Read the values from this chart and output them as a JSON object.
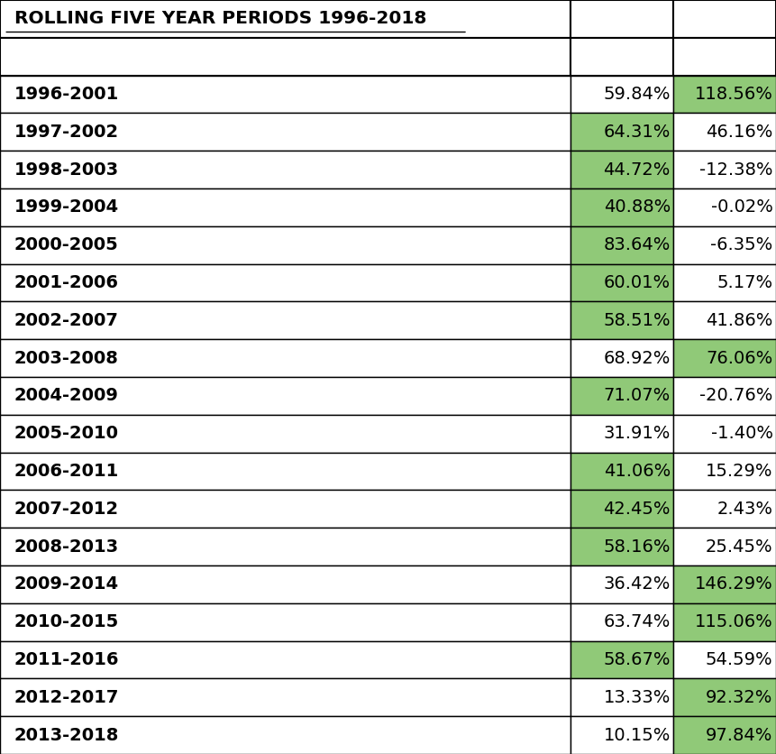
{
  "title": "ROLLING FIVE YEAR PERIODS 1996-2018",
  "rows": [
    {
      "period": "1996-2001",
      "col1": "59.84%",
      "col2": "118.56%",
      "col1_green": false,
      "col2_green": true
    },
    {
      "period": "1997-2002",
      "col1": "64.31%",
      "col2": "46.16%",
      "col1_green": true,
      "col2_green": false
    },
    {
      "period": "1998-2003",
      "col1": "44.72%",
      "col2": "-12.38%",
      "col1_green": true,
      "col2_green": false
    },
    {
      "period": "1999-2004",
      "col1": "40.88%",
      "col2": "-0.02%",
      "col1_green": true,
      "col2_green": false
    },
    {
      "period": "2000-2005",
      "col1": "83.64%",
      "col2": "-6.35%",
      "col1_green": true,
      "col2_green": false
    },
    {
      "period": "2001-2006",
      "col1": "60.01%",
      "col2": "5.17%",
      "col1_green": true,
      "col2_green": false
    },
    {
      "period": "2002-2007",
      "col1": "58.51%",
      "col2": "41.86%",
      "col1_green": true,
      "col2_green": false
    },
    {
      "period": "2003-2008",
      "col1": "68.92%",
      "col2": "76.06%",
      "col1_green": false,
      "col2_green": true
    },
    {
      "period": "2004-2009",
      "col1": "71.07%",
      "col2": "-20.76%",
      "col1_green": true,
      "col2_green": false
    },
    {
      "period": "2005-2010",
      "col1": "31.91%",
      "col2": "-1.40%",
      "col1_green": false,
      "col2_green": false
    },
    {
      "period": "2006-2011",
      "col1": "41.06%",
      "col2": "15.29%",
      "col1_green": true,
      "col2_green": false
    },
    {
      "period": "2007-2012",
      "col1": "42.45%",
      "col2": "2.43%",
      "col1_green": true,
      "col2_green": false
    },
    {
      "period": "2008-2013",
      "col1": "58.16%",
      "col2": "25.45%",
      "col1_green": true,
      "col2_green": false
    },
    {
      "period": "2009-2014",
      "col1": "36.42%",
      "col2": "146.29%",
      "col1_green": false,
      "col2_green": true
    },
    {
      "period": "2010-2015",
      "col1": "63.74%",
      "col2": "115.06%",
      "col1_green": false,
      "col2_green": true
    },
    {
      "period": "2011-2016",
      "col1": "58.67%",
      "col2": "54.59%",
      "col1_green": true,
      "col2_green": false
    },
    {
      "period": "2012-2017",
      "col1": "13.33%",
      "col2": "92.32%",
      "col1_green": false,
      "col2_green": true
    },
    {
      "period": "2013-2018",
      "col1": "10.15%",
      "col2": "97.84%",
      "col1_green": false,
      "col2_green": true
    }
  ],
  "green_color": "#90c978",
  "white_color": "#ffffff",
  "border_color": "#000000",
  "text_color": "#000000",
  "title_fontsize": 14.5,
  "cell_fontsize": 14,
  "fig_width": 8.61,
  "fig_height": 8.36,
  "dpi": 100
}
